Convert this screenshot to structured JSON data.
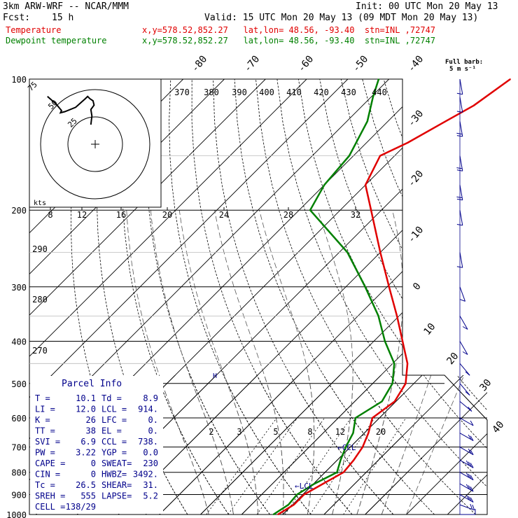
{
  "header": {
    "model": "3km ARW-WRF -- NCAR/MMM",
    "init": "Init: 00 UTC Mon 20 May 13",
    "fcst_label": "Fcst:",
    "fcst_value": "15 h",
    "valid": "Valid: 15 UTC Mon 20 May 13 (09 MDT Mon 20 May 13)"
  },
  "legend": [
    {
      "name": "Temperature",
      "color": "#e00000",
      "info": "x,y=578.52,852.27   lat,lon= 48.56, -93.40  stn=INL ,72747"
    },
    {
      "name": "Dewpoint temperature",
      "color": "#008000",
      "info": "x,y=578.52,852.27   lat,lon= 48.56, -93.40  stn=INL ,72747"
    }
  ],
  "wind_barb_key": {
    "line1": "Full barb:",
    "line2": "5 m s⁻¹"
  },
  "parcel_info": {
    "title": "Parcel Info",
    "rows": [
      [
        "T  =",
        "10.1",
        "Td =",
        "8.9"
      ],
      [
        "LI =",
        "12.0",
        "LCL =",
        "914."
      ],
      [
        "K  =",
        "26",
        "LFC =",
        "0."
      ],
      [
        "TT =",
        "38",
        "EL  =",
        "0."
      ],
      [
        "SVI =",
        "6.9",
        "CCL =",
        "738."
      ],
      [
        "PW =",
        "3.22",
        "YGP =",
        "0.0"
      ],
      [
        "CAPE =",
        "0",
        "SWEAT=",
        "230"
      ],
      [
        "CIN =",
        "0",
        "HWBZ=",
        "3492."
      ],
      [
        "Tc =",
        "26.5",
        "SHEAR=",
        "31."
      ],
      [
        "SREH =",
        "555",
        "LAPSE=",
        "5.2"
      ],
      [
        "CELL =",
        "138/29",
        "",
        ""
      ]
    ]
  },
  "hodograph": {
    "units": "kts",
    "ring_labels": [
      "75",
      "50",
      "25"
    ],
    "speed_scale_ticks": [
      "8",
      "12",
      "16",
      "20",
      "24",
      "28",
      "32"
    ],
    "trace_uv_kts": [
      [
        -4,
        18
      ],
      [
        -3,
        26
      ],
      [
        -4,
        32
      ],
      [
        -1,
        36
      ],
      [
        -2,
        40
      ],
      [
        -5,
        42
      ],
      [
        -7,
        44
      ],
      [
        -9,
        42
      ],
      [
        -18,
        34
      ],
      [
        -28,
        30
      ],
      [
        -32,
        29
      ],
      [
        -31,
        31
      ],
      [
        -36,
        37
      ],
      [
        -44,
        44
      ]
    ]
  },
  "chart_data": {
    "type": "line",
    "title": "",
    "pressure_axis_hPa": [
      100,
      200,
      300,
      400,
      500,
      600,
      700,
      800,
      900,
      1000
    ],
    "upper_temp_labels_C": [
      "-80",
      "-70",
      "-60",
      "-50",
      "-40",
      "-30",
      "-20",
      "-10",
      "0",
      "10",
      "20",
      "30",
      "40"
    ],
    "theta_labels_K": [
      "370",
      "380",
      "390",
      "400",
      "410",
      "420",
      "430",
      "440"
    ],
    "theta_side_labels_K": [
      "290",
      "280",
      "270"
    ],
    "mixing_ratio_labels_gkg": [
      "2",
      "3",
      "5",
      "8",
      "12",
      "20"
    ],
    "annotations": [
      "CCL",
      "LCL"
    ],
    "series": [
      {
        "name": "Temperature",
        "color": "#e00000",
        "points_p_T": [
          [
            1000,
            8.8
          ],
          [
            950,
            10.3
          ],
          [
            900,
            10.3
          ],
          [
            850,
            12.3
          ],
          [
            800,
            14.5
          ],
          [
            750,
            14.0
          ],
          [
            700,
            13.0
          ],
          [
            650,
            11.0
          ],
          [
            600,
            8.3
          ],
          [
            550,
            9.7
          ],
          [
            500,
            8.0
          ],
          [
            450,
            3.6
          ],
          [
            400,
            -3.0
          ],
          [
            350,
            -10.5
          ],
          [
            300,
            -19.5
          ],
          [
            250,
            -30.0
          ],
          [
            200,
            -42.5
          ],
          [
            175,
            -50.0
          ],
          [
            150,
            -53.5
          ],
          [
            140,
            -50.0
          ],
          [
            125,
            -46.0
          ],
          [
            115,
            -43.0
          ],
          [
            100,
            -40.5
          ]
        ]
      },
      {
        "name": "Dewpoint temperature",
        "color": "#008000",
        "points_p_T": [
          [
            1000,
            7.7
          ],
          [
            950,
            9.0
          ],
          [
            900,
            8.6
          ],
          [
            850,
            10.2
          ],
          [
            800,
            12.9
          ],
          [
            750,
            10.8
          ],
          [
            700,
            8.9
          ],
          [
            650,
            7.3
          ],
          [
            600,
            4.2
          ],
          [
            550,
            6.6
          ],
          [
            500,
            4.8
          ],
          [
            450,
            0.4
          ],
          [
            400,
            -7.3
          ],
          [
            350,
            -15.0
          ],
          [
            300,
            -25.3
          ],
          [
            250,
            -38.0
          ],
          [
            200,
            -57.3
          ],
          [
            175,
            -60.0
          ],
          [
            150,
            -61.0
          ],
          [
            125,
            -65.0
          ],
          [
            110,
            -69.5
          ],
          [
            100,
            -72.5
          ]
        ]
      }
    ],
    "wind_barbs": [
      {
        "p": 1000,
        "speed_ms": 6,
        "dir": 270
      },
      {
        "p": 950,
        "speed_ms": 10,
        "dir": 290
      },
      {
        "p": 900,
        "speed_ms": 14,
        "dir": 300
      },
      {
        "p": 850,
        "speed_ms": 15,
        "dir": 300
      },
      {
        "p": 800,
        "speed_ms": 15,
        "dir": 300
      },
      {
        "p": 750,
        "speed_ms": 13,
        "dir": 300
      },
      {
        "p": 700,
        "speed_ms": 11,
        "dir": 300
      },
      {
        "p": 650,
        "speed_ms": 9,
        "dir": 300
      },
      {
        "p": 600,
        "speed_ms": 7,
        "dir": 300
      },
      {
        "p": 550,
        "speed_ms": 6,
        "dir": 310
      },
      {
        "p": 500,
        "speed_ms": 5,
        "dir": 320
      },
      {
        "p": 450,
        "speed_ms": 5,
        "dir": 320
      },
      {
        "p": 400,
        "speed_ms": 4,
        "dir": 330
      },
      {
        "p": 350,
        "speed_ms": 5,
        "dir": 330
      },
      {
        "p": 300,
        "speed_ms": 5,
        "dir": 340
      },
      {
        "p": 250,
        "speed_ms": 6,
        "dir": 350
      },
      {
        "p": 200,
        "speed_ms": 7,
        "dir": 350
      },
      {
        "p": 175,
        "speed_ms": 9,
        "dir": 350
      },
      {
        "p": 150,
        "speed_ms": 10,
        "dir": 350
      },
      {
        "p": 125,
        "speed_ms": 8,
        "dir": 350
      },
      {
        "p": 110,
        "speed_ms": 6,
        "dir": 350
      },
      {
        "p": 100,
        "speed_ms": 5,
        "dir": 350
      }
    ]
  }
}
